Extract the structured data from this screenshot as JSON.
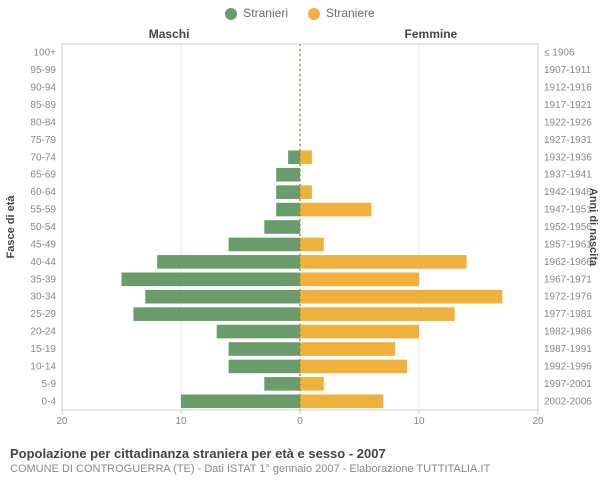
{
  "legend": {
    "items": [
      {
        "label": "Stranieri",
        "color": "#6a9b6a"
      },
      {
        "label": "Straniere",
        "color": "#f0b13c"
      }
    ]
  },
  "headers": {
    "left": "Maschi",
    "right": "Femmine"
  },
  "axis_titles": {
    "left": "Fasce di età",
    "right": "Anni di nascita"
  },
  "footer": {
    "title": "Popolazione per cittadinanza straniera per età e sesso - 2007",
    "sub": "COMUNE DI CONTROGUERRA (TE) - Dati ISTAT 1° gennaio 2007 - Elaborazione TUTTITALIA.IT"
  },
  "pyramid": {
    "type": "population-pyramid",
    "left_label_header": "Fasce di età",
    "right_label_header": "Anni di nascita",
    "xmax": 20,
    "xticks": [
      20,
      10,
      0,
      10,
      20
    ],
    "background_color": "#ffffff",
    "plot_border_color": "#cccccc",
    "grid_color": "#e7e7e7",
    "center_line_color": "#9a8a3a",
    "center_line_dash": "2,3",
    "left_color": "#6a9b6a",
    "right_color": "#f0b13c",
    "bar_height_ratio": 0.78,
    "tick_fontsize": 10,
    "cat_fontsize": 10,
    "header_fontsize": 12,
    "rows": [
      {
        "age": "100+",
        "birth": "≤ 1906",
        "m": 0,
        "f": 0
      },
      {
        "age": "95-99",
        "birth": "1907-1911",
        "m": 0,
        "f": 0
      },
      {
        "age": "90-94",
        "birth": "1912-1916",
        "m": 0,
        "f": 0
      },
      {
        "age": "85-89",
        "birth": "1917-1921",
        "m": 0,
        "f": 0
      },
      {
        "age": "80-84",
        "birth": "1922-1926",
        "m": 0,
        "f": 0
      },
      {
        "age": "75-79",
        "birth": "1927-1931",
        "m": 0,
        "f": 0
      },
      {
        "age": "70-74",
        "birth": "1932-1936",
        "m": 1,
        "f": 1
      },
      {
        "age": "65-69",
        "birth": "1937-1941",
        "m": 2,
        "f": 0
      },
      {
        "age": "60-64",
        "birth": "1942-1946",
        "m": 2,
        "f": 1
      },
      {
        "age": "55-59",
        "birth": "1947-1951",
        "m": 2,
        "f": 6
      },
      {
        "age": "50-54",
        "birth": "1952-1956",
        "m": 3,
        "f": 0
      },
      {
        "age": "45-49",
        "birth": "1957-1961",
        "m": 6,
        "f": 2
      },
      {
        "age": "40-44",
        "birth": "1962-1966",
        "m": 12,
        "f": 14
      },
      {
        "age": "35-39",
        "birth": "1967-1971",
        "m": 15,
        "f": 10
      },
      {
        "age": "30-34",
        "birth": "1972-1976",
        "m": 13,
        "f": 17
      },
      {
        "age": "25-29",
        "birth": "1977-1981",
        "m": 14,
        "f": 13
      },
      {
        "age": "20-24",
        "birth": "1982-1986",
        "m": 7,
        "f": 10
      },
      {
        "age": "15-19",
        "birth": "1987-1991",
        "m": 6,
        "f": 8
      },
      {
        "age": "10-14",
        "birth": "1992-1996",
        "m": 6,
        "f": 9
      },
      {
        "age": "5-9",
        "birth": "1997-2001",
        "m": 3,
        "f": 2
      },
      {
        "age": "0-4",
        "birth": "2002-2006",
        "m": 10,
        "f": 7
      }
    ]
  }
}
